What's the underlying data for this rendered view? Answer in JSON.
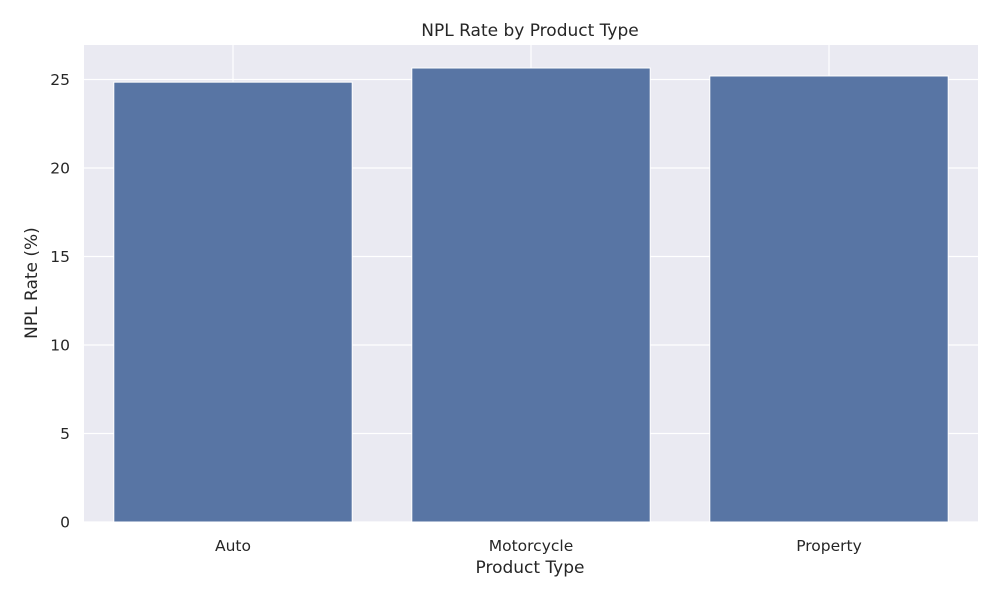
{
  "chart_data": {
    "type": "bar",
    "title": "NPL Rate by Product Type",
    "xlabel": "Product Type",
    "ylabel": "NPL Rate (%)",
    "categories": [
      "Auto",
      "Motorcycle",
      "Property"
    ],
    "values": [
      24.85,
      25.65,
      25.2
    ],
    "ylim": [
      0,
      26.95
    ],
    "yticks": [
      0,
      5,
      10,
      15,
      20,
      25
    ],
    "ytick_labels": [
      "0",
      "5",
      "10",
      "15",
      "20",
      "25"
    ],
    "grid": true,
    "legend": "none",
    "colors": {
      "bar": "#5875a4",
      "plot_background": "#eaeaf2",
      "grid": "#ffffff"
    }
  }
}
